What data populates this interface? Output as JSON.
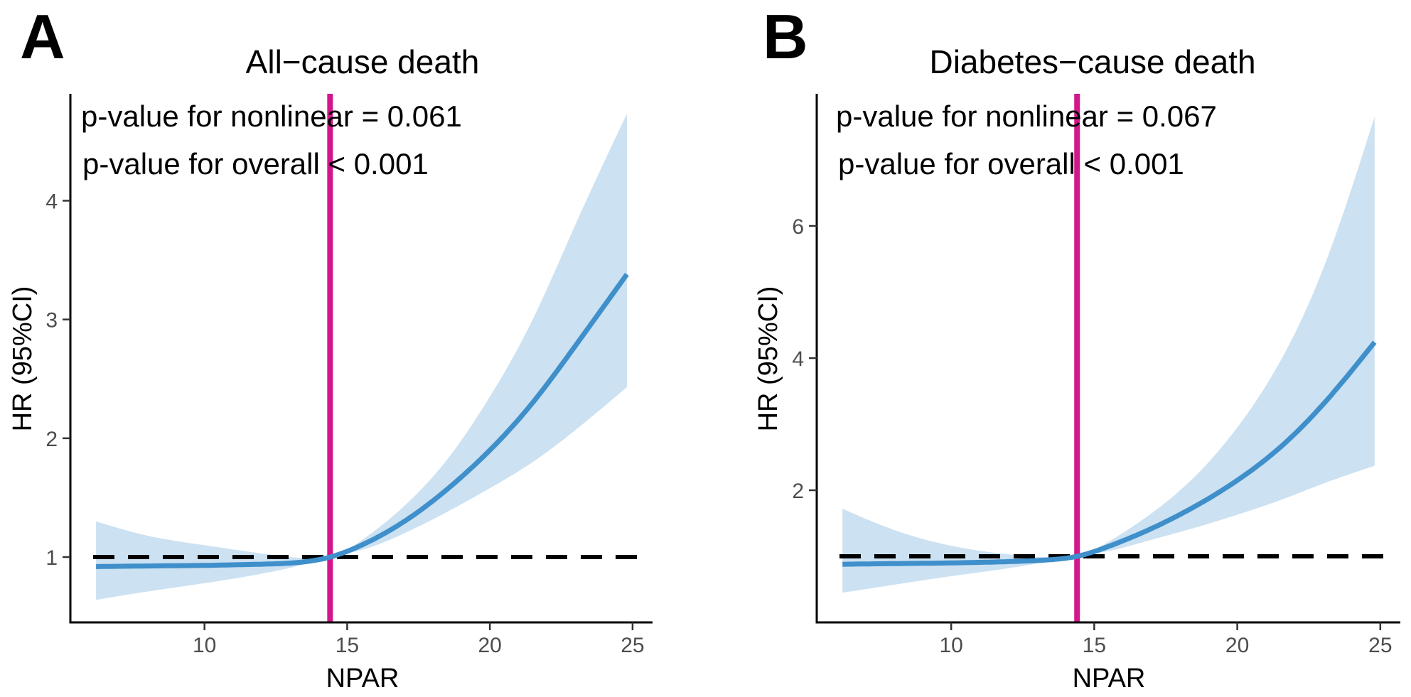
{
  "chart_data": [
    {
      "type": "line",
      "panel_label": "A",
      "title": "All−cause death",
      "xlabel": "NPAR",
      "ylabel": "HR (95%CI)",
      "xlim": [
        5.3,
        25.7
      ],
      "ylim": [
        0.45,
        4.9
      ],
      "x_ticks": [
        10,
        15,
        20,
        25
      ],
      "x_tick_labels": [
        "10",
        "15",
        "20",
        "25"
      ],
      "y_ticks": [
        1,
        2,
        3,
        4
      ],
      "y_tick_labels": [
        "1",
        "2",
        "3",
        "4"
      ],
      "grid": false,
      "annotations": [
        "p-value for nonlinear = 0.061",
        "p-value for overall < 0.001"
      ],
      "reference_hr": 1,
      "reference_npar": 14.4,
      "series": [
        {
          "name": "HR",
          "x": [
            6.2,
            8,
            10,
            12,
            13.5,
            14.4,
            15.5,
            17,
            18.5,
            20,
            21.5,
            23,
            24.8
          ],
          "y": [
            0.92,
            0.925,
            0.93,
            0.94,
            0.96,
            1.0,
            1.1,
            1.3,
            1.57,
            1.9,
            2.3,
            2.78,
            3.38
          ],
          "lower": [
            0.64,
            0.71,
            0.78,
            0.86,
            0.94,
            1.0,
            1.06,
            1.2,
            1.38,
            1.58,
            1.8,
            2.07,
            2.43
          ],
          "upper": [
            1.3,
            1.18,
            1.1,
            1.03,
            0.99,
            1.0,
            1.14,
            1.43,
            1.82,
            2.35,
            3.0,
            3.8,
            4.73
          ],
          "color": "#3f8fcb",
          "band_color": "#cce1f1"
        }
      ]
    },
    {
      "type": "line",
      "panel_label": "B",
      "title": "Diabetes−cause death",
      "xlabel": "NPAR",
      "ylabel": "HR (95%CI)",
      "xlim": [
        5.3,
        25.7
      ],
      "ylim": [
        0.0,
        8.0
      ],
      "x_ticks": [
        10,
        15,
        20,
        25
      ],
      "x_tick_labels": [
        "10",
        "15",
        "20",
        "25"
      ],
      "y_ticks": [
        2,
        4,
        6
      ],
      "y_tick_labels": [
        "2",
        "4",
        "6"
      ],
      "grid": false,
      "annotations": [
        "p-value for nonlinear = 0.067",
        "p-value for overall < 0.001"
      ],
      "reference_hr": 1,
      "reference_npar": 14.4,
      "series": [
        {
          "name": "HR",
          "x": [
            6.2,
            8,
            10,
            12,
            13.5,
            14.4,
            15.5,
            17,
            18.5,
            20,
            21.5,
            23,
            24.8
          ],
          "y": [
            0.88,
            0.89,
            0.9,
            0.92,
            0.95,
            1.0,
            1.15,
            1.42,
            1.75,
            2.15,
            2.65,
            3.3,
            4.24
          ],
          "lower": [
            0.45,
            0.57,
            0.7,
            0.82,
            0.93,
            1.0,
            1.08,
            1.25,
            1.43,
            1.63,
            1.85,
            2.1,
            2.37
          ],
          "upper": [
            1.72,
            1.4,
            1.16,
            1.03,
            0.98,
            1.0,
            1.22,
            1.65,
            2.2,
            2.95,
            3.95,
            5.35,
            7.65
          ],
          "color": "#3f8fcb",
          "band_color": "#cce1f1"
        }
      ]
    }
  ],
  "colors": {
    "reference_vline": "#d4168c",
    "reference_hline": "#000000",
    "axis": "#000000"
  }
}
